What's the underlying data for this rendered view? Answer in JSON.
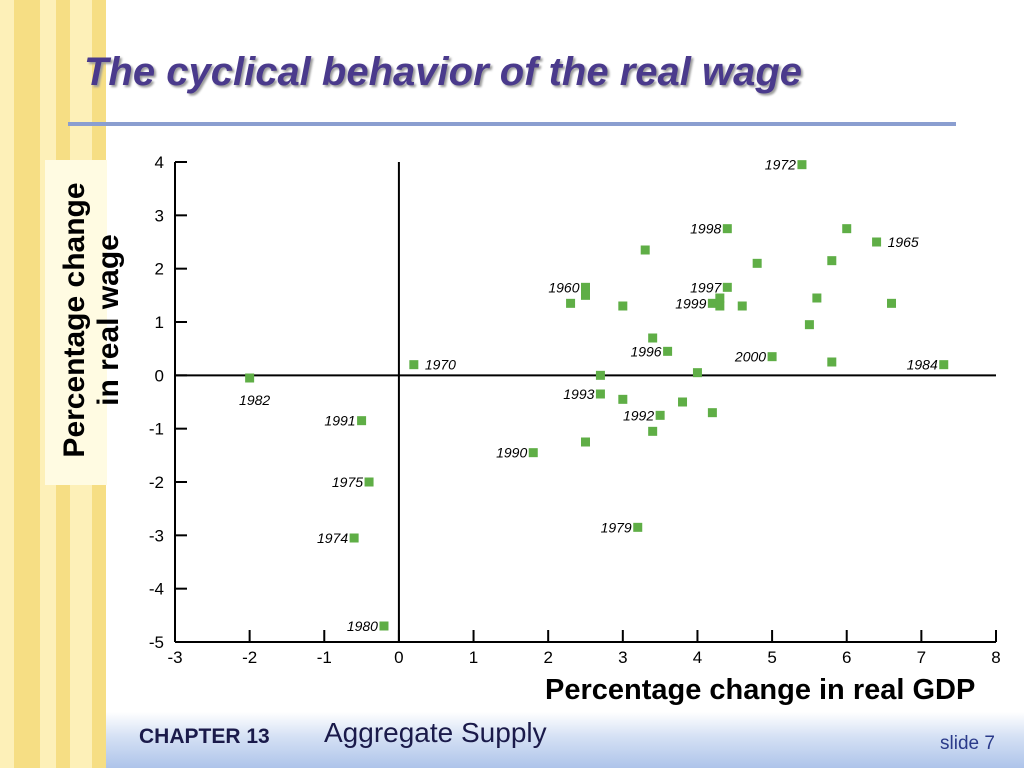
{
  "slide": {
    "title": "The cyclical behavior of the real wage",
    "footer_chapter": "CHAPTER 13",
    "footer_subject": "Aggregate Supply",
    "footer_slide": "slide 7"
  },
  "colors": {
    "title": "#4a3a8c",
    "marker": "#5fae46",
    "stripe_light": "#fdf0b8",
    "stripe_dark": "#f6de84",
    "footer": "#aec4ea"
  },
  "chart_data": {
    "type": "scatter",
    "title": "",
    "xlabel": "Percentage change in real GDP",
    "ylabel_lines": [
      "Percentage change",
      "in real wage"
    ],
    "xlim": [
      -3,
      8
    ],
    "ylim": [
      -5,
      4
    ],
    "xticks": [
      -3,
      -2,
      -1,
      0,
      1,
      2,
      3,
      4,
      5,
      6,
      7,
      8
    ],
    "yticks": [
      -5,
      -4,
      -3,
      -2,
      -1,
      0,
      1,
      2,
      3,
      4
    ],
    "grid": false,
    "points": [
      {
        "x": 5.4,
        "y": 3.95,
        "label": "1972",
        "label_side": "left"
      },
      {
        "x": 4.4,
        "y": 2.75,
        "label": "1998",
        "label_side": "left"
      },
      {
        "x": 6.0,
        "y": 2.75,
        "label": "",
        "label_side": "none"
      },
      {
        "x": 6.4,
        "y": 2.5,
        "label": "1965",
        "label_side": "right"
      },
      {
        "x": 3.3,
        "y": 2.35,
        "label": "",
        "label_side": "none"
      },
      {
        "x": 4.8,
        "y": 2.1,
        "label": "",
        "label_side": "none"
      },
      {
        "x": 5.8,
        "y": 2.15,
        "label": "",
        "label_side": "none"
      },
      {
        "x": 2.5,
        "y": 1.65,
        "label": "1960",
        "label_side": "left"
      },
      {
        "x": 2.5,
        "y": 1.5,
        "label": "",
        "label_side": "none"
      },
      {
        "x": 4.4,
        "y": 1.65,
        "label": "1997",
        "label_side": "left"
      },
      {
        "x": 2.3,
        "y": 1.35,
        "label": "",
        "label_side": "none"
      },
      {
        "x": 3.0,
        "y": 1.3,
        "label": "",
        "label_side": "none"
      },
      {
        "x": 4.2,
        "y": 1.35,
        "label": "1999",
        "label_side": "left"
      },
      {
        "x": 4.3,
        "y": 1.45,
        "label": "",
        "label_side": "none"
      },
      {
        "x": 4.3,
        "y": 1.3,
        "label": "",
        "label_side": "none"
      },
      {
        "x": 4.6,
        "y": 1.3,
        "label": "",
        "label_side": "none"
      },
      {
        "x": 5.6,
        "y": 1.45,
        "label": "",
        "label_side": "none"
      },
      {
        "x": 6.6,
        "y": 1.35,
        "label": "",
        "label_side": "none"
      },
      {
        "x": 5.5,
        "y": 0.95,
        "label": "",
        "label_side": "none"
      },
      {
        "x": 3.4,
        "y": 0.7,
        "label": "",
        "label_side": "none"
      },
      {
        "x": 3.6,
        "y": 0.45,
        "label": "1996",
        "label_side": "left"
      },
      {
        "x": 5.0,
        "y": 0.35,
        "label": "2000",
        "label_side": "left"
      },
      {
        "x": 5.8,
        "y": 0.25,
        "label": "",
        "label_side": "none"
      },
      {
        "x": 7.3,
        "y": 0.2,
        "label": "1984",
        "label_side": "left"
      },
      {
        "x": 0.2,
        "y": 0.2,
        "label": "1970",
        "label_side": "right"
      },
      {
        "x": 2.7,
        "y": 0.0,
        "label": "",
        "label_side": "none"
      },
      {
        "x": 4.0,
        "y": 0.05,
        "label": "",
        "label_side": "none"
      },
      {
        "x": -2.0,
        "y": -0.05,
        "label": "1982",
        "label_side": "below"
      },
      {
        "x": 2.7,
        "y": -0.35,
        "label": "1993",
        "label_side": "left"
      },
      {
        "x": 3.0,
        "y": -0.45,
        "label": "",
        "label_side": "none"
      },
      {
        "x": 3.8,
        "y": -0.5,
        "label": "",
        "label_side": "none"
      },
      {
        "x": 4.2,
        "y": -0.7,
        "label": "",
        "label_side": "none"
      },
      {
        "x": 3.5,
        "y": -0.75,
        "label": "1992",
        "label_side": "left"
      },
      {
        "x": 3.4,
        "y": -1.05,
        "label": "",
        "label_side": "none"
      },
      {
        "x": -0.5,
        "y": -0.85,
        "label": "1991",
        "label_side": "left"
      },
      {
        "x": 2.5,
        "y": -1.25,
        "label": "",
        "label_side": "none"
      },
      {
        "x": 1.8,
        "y": -1.45,
        "label": "1990",
        "label_side": "left"
      },
      {
        "x": -0.4,
        "y": -2.0,
        "label": "1975",
        "label_side": "left"
      },
      {
        "x": 3.2,
        "y": -2.85,
        "label": "1979",
        "label_side": "left"
      },
      {
        "x": -0.6,
        "y": -3.05,
        "label": "1974",
        "label_side": "left"
      },
      {
        "x": -0.2,
        "y": -4.7,
        "label": "1980",
        "label_side": "left"
      }
    ]
  }
}
